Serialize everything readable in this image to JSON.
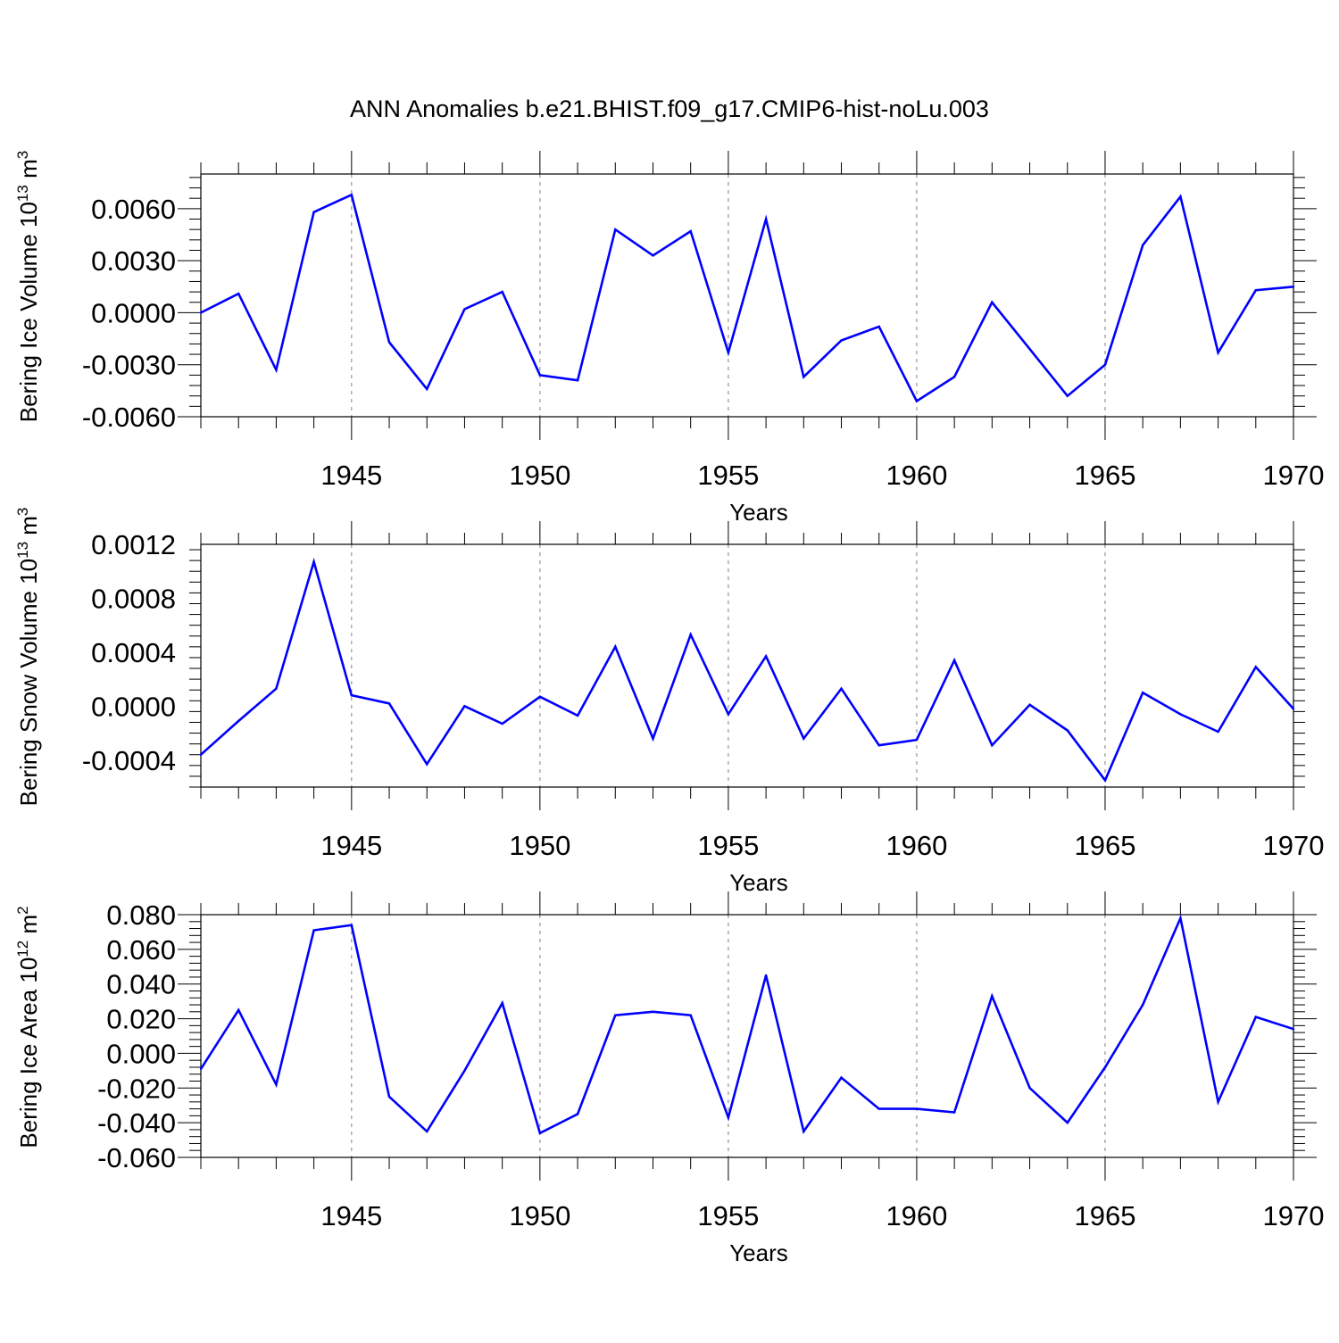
{
  "title": "ANN Anomalies b.e21.BHIST.f09_g17.CMIP6-hist-noLu.003",
  "colors": {
    "line": "#0000ff",
    "axis": "#000000",
    "grid": "#808080"
  },
  "chart_data": [
    {
      "type": "line",
      "ylabel_main": "Bering Ice Volume 10",
      "ylabel_exp": "13",
      "ylabel_tail": " m",
      "ylabel_tail_exp": "3",
      "xlabel": "Years",
      "xlim": [
        1941,
        1970
      ],
      "ylim": [
        -0.006,
        0.008
      ],
      "yticks": [
        -0.006,
        -0.003,
        0.0,
        0.003,
        0.006
      ],
      "ytick_labels": [
        "-0.0060",
        "-0.0030",
        "0.0000",
        "0.0030",
        "0.0060"
      ],
      "xticks": [
        1945,
        1950,
        1955,
        1960,
        1965,
        1970
      ],
      "xtick_labels": [
        "1945",
        "1950",
        "1955",
        "1960",
        "1965",
        "1970"
      ],
      "x": [
        1941,
        1942,
        1943,
        1944,
        1945,
        1946,
        1947,
        1948,
        1949,
        1950,
        1951,
        1952,
        1953,
        1954,
        1955,
        1956,
        1957,
        1958,
        1959,
        1960,
        1961,
        1962,
        1963,
        1964,
        1965,
        1966,
        1967,
        1968,
        1969,
        1970
      ],
      "values": [
        0.0,
        0.0011,
        -0.0033,
        0.0058,
        0.0068,
        -0.0017,
        -0.0044,
        0.0002,
        0.0012,
        -0.0036,
        -0.0039,
        0.0048,
        0.0033,
        0.0047,
        -0.0023,
        0.0054,
        -0.0037,
        -0.0016,
        -0.0008,
        -0.0051,
        -0.0037,
        0.0006,
        -0.0021,
        -0.0048,
        -0.003,
        0.0039,
        0.0067,
        -0.0023,
        0.0013,
        0.0015
      ]
    },
    {
      "type": "line",
      "ylabel_main": "Bering Snow Volume 10",
      "ylabel_exp": "13",
      "ylabel_tail": " m",
      "ylabel_tail_exp": "3",
      "xlabel": "Years",
      "xlim": [
        1941,
        1970
      ],
      "ylim": [
        -0.0006,
        0.0012
      ],
      "yticks": [
        -0.0004,
        0.0,
        0.0004,
        0.0008,
        0.0012
      ],
      "ytick_labels": [
        "-0.0004",
        "0.0000",
        "0.0004",
        "0.0008",
        "0.0012"
      ],
      "xticks": [
        1945,
        1950,
        1955,
        1960,
        1965,
        1970
      ],
      "xtick_labels": [
        "1945",
        "1950",
        "1955",
        "1960",
        "1965",
        "1970"
      ],
      "x": [
        1941,
        1942,
        1943,
        1944,
        1945,
        1946,
        1947,
        1948,
        1949,
        1950,
        1951,
        1952,
        1953,
        1954,
        1955,
        1956,
        1957,
        1958,
        1959,
        1960,
        1961,
        1962,
        1963,
        1964,
        1965,
        1966,
        1967,
        1968,
        1969,
        1970
      ],
      "values": [
        -0.00036,
        -0.00011,
        0.00013,
        0.00107,
        8e-05,
        2e-05,
        -0.00043,
        0.0,
        -0.00013,
        7e-05,
        -7e-05,
        0.00044,
        -0.00024,
        0.00053,
        -6e-05,
        0.00037,
        -0.00024,
        0.00013,
        -0.00029,
        -0.00025,
        0.00034,
        -0.00029,
        1e-05,
        -0.00018,
        -0.00055,
        0.0001,
        -6e-05,
        -0.00019,
        0.00029,
        -2e-05
      ]
    },
    {
      "type": "line",
      "ylabel_main": "Bering Ice Area 10",
      "ylabel_exp": "12",
      "ylabel_tail": " m",
      "ylabel_tail_exp": "2",
      "xlabel": "Years",
      "xlim": [
        1941,
        1970
      ],
      "ylim": [
        -0.06,
        0.08
      ],
      "yticks": [
        -0.06,
        -0.04,
        -0.02,
        0.0,
        0.02,
        0.04,
        0.06,
        0.08
      ],
      "ytick_labels": [
        "-0.060",
        "-0.040",
        "-0.020",
        "0.000",
        "0.020",
        "0.040",
        "0.060",
        "0.080"
      ],
      "xticks": [
        1945,
        1950,
        1955,
        1960,
        1965,
        1970
      ],
      "xtick_labels": [
        "1945",
        "1950",
        "1955",
        "1960",
        "1965",
        "1970"
      ],
      "x": [
        1941,
        1942,
        1943,
        1944,
        1945,
        1946,
        1947,
        1948,
        1949,
        1950,
        1951,
        1952,
        1953,
        1954,
        1955,
        1956,
        1957,
        1958,
        1959,
        1960,
        1961,
        1962,
        1963,
        1964,
        1965,
        1966,
        1967,
        1968,
        1969,
        1970
      ],
      "values": [
        -0.009,
        0.025,
        -0.018,
        0.071,
        0.074,
        -0.025,
        -0.045,
        -0.01,
        0.029,
        -0.046,
        -0.035,
        0.022,
        0.024,
        0.022,
        -0.037,
        0.045,
        -0.045,
        -0.014,
        -0.032,
        -0.032,
        -0.034,
        0.033,
        -0.02,
        -0.04,
        -0.008,
        0.028,
        0.078,
        -0.028,
        0.021,
        0.014
      ]
    }
  ]
}
